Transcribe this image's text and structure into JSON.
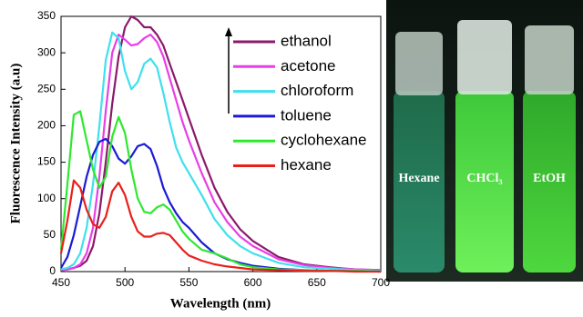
{
  "chart_data": {
    "type": "line",
    "xlabel": "Wavelength (nm)",
    "ylabel": "Fluorescence Intensity (a.u)",
    "x": [
      450,
      455,
      460,
      465,
      470,
      475,
      480,
      485,
      490,
      495,
      500,
      505,
      510,
      515,
      520,
      525,
      530,
      535,
      540,
      545,
      550,
      560,
      570,
      580,
      590,
      600,
      620,
      640,
      660,
      680,
      700
    ],
    "series": [
      {
        "name": "ethanol",
        "color": "#8b1a6b",
        "values": [
          2,
          3,
          5,
          8,
          15,
          35,
          80,
          150,
          230,
          295,
          335,
          350,
          345,
          335,
          335,
          325,
          310,
          285,
          260,
          235,
          210,
          160,
          115,
          82,
          58,
          42,
          20,
          10,
          6,
          3,
          2
        ]
      },
      {
        "name": "acetone",
        "color": "#e83ee8",
        "values": [
          2,
          3,
          5,
          10,
          25,
          60,
          130,
          220,
          300,
          325,
          318,
          310,
          312,
          320,
          325,
          315,
          295,
          265,
          235,
          205,
          180,
          135,
          95,
          68,
          48,
          35,
          17,
          9,
          5,
          3,
          2
        ]
      },
      {
        "name": "chloroform",
        "color": "#3ee0ee",
        "values": [
          3,
          5,
          10,
          25,
          60,
          120,
          200,
          290,
          328,
          320,
          275,
          250,
          260,
          285,
          292,
          280,
          245,
          205,
          170,
          150,
          135,
          105,
          72,
          50,
          35,
          25,
          12,
          6,
          4,
          2,
          1
        ]
      },
      {
        "name": "toluene",
        "color": "#1a1ad6",
        "values": [
          5,
          20,
          50,
          90,
          130,
          160,
          178,
          182,
          172,
          155,
          148,
          158,
          172,
          175,
          168,
          145,
          115,
          95,
          80,
          68,
          60,
          40,
          25,
          17,
          12,
          8,
          4,
          2,
          1,
          1,
          0
        ]
      },
      {
        "name": "cyclohexane",
        "color": "#2ee82e",
        "values": [
          30,
          120,
          215,
          220,
          180,
          140,
          115,
          130,
          185,
          212,
          190,
          140,
          100,
          82,
          80,
          88,
          92,
          85,
          70,
          55,
          45,
          30,
          25,
          18,
          10,
          6,
          3,
          2,
          1,
          1,
          0
        ]
      },
      {
        "name": "hexane",
        "color": "#e8201a",
        "values": [
          25,
          70,
          125,
          115,
          85,
          65,
          60,
          75,
          110,
          122,
          105,
          75,
          55,
          48,
          48,
          52,
          53,
          50,
          40,
          30,
          22,
          15,
          10,
          7,
          5,
          3,
          2,
          1,
          1,
          0,
          0
        ]
      }
    ],
    "xlim": [
      450,
      700
    ],
    "xticks": [
      450,
      500,
      550,
      600,
      650,
      700
    ],
    "ylim": [
      0,
      350
    ],
    "yticks": [
      0,
      50,
      100,
      150,
      200,
      250,
      300,
      350
    ],
    "legend": "upper right"
  },
  "photo": {
    "labels": [
      "Hexane",
      "CHCl₃",
      "EtOH"
    ]
  }
}
